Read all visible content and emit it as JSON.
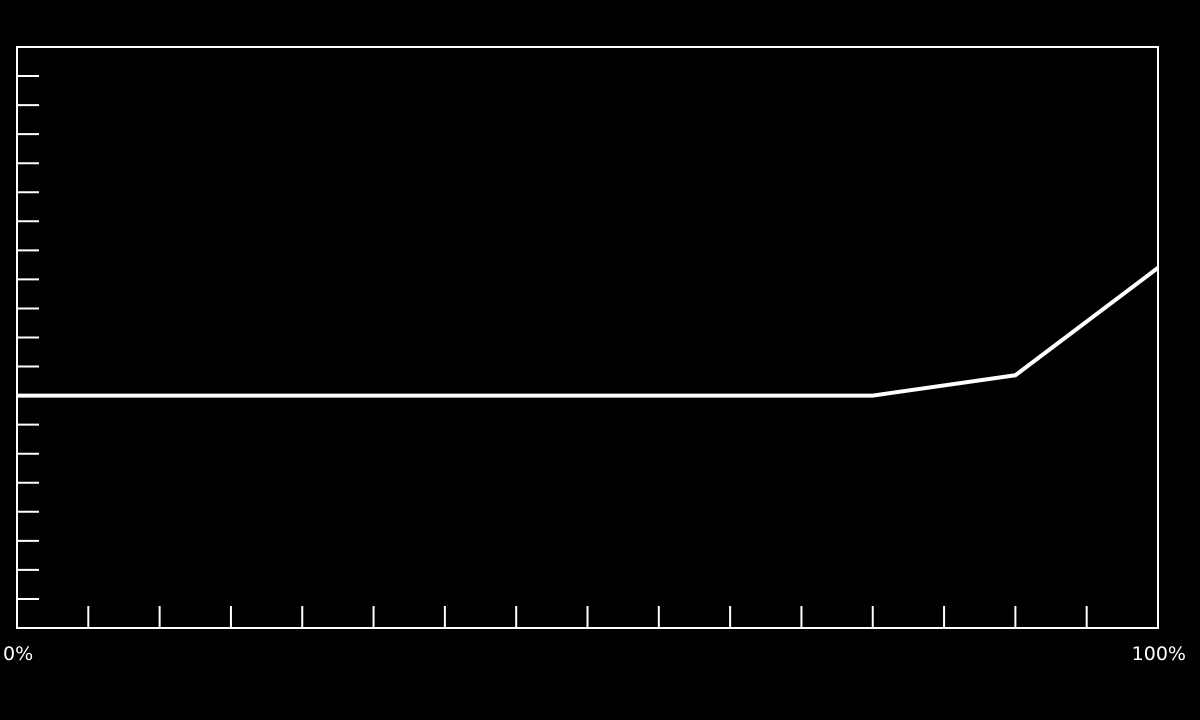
{
  "chart_data": {
    "type": "line",
    "title": "",
    "xlabel": "",
    "ylabel": "",
    "x_tick_labels": [
      "0%",
      "100%"
    ],
    "xlim": [
      0,
      100
    ],
    "ylim": [
      0,
      100
    ],
    "x_minor_ticks": 16,
    "y_minor_ticks": 20,
    "grid": false,
    "background_color": "#000000",
    "line_color": "#ffffff",
    "series": [
      {
        "x": [
          0,
          75,
          87.5,
          100
        ],
        "y": [
          40,
          40,
          43.5,
          62
        ]
      }
    ]
  }
}
